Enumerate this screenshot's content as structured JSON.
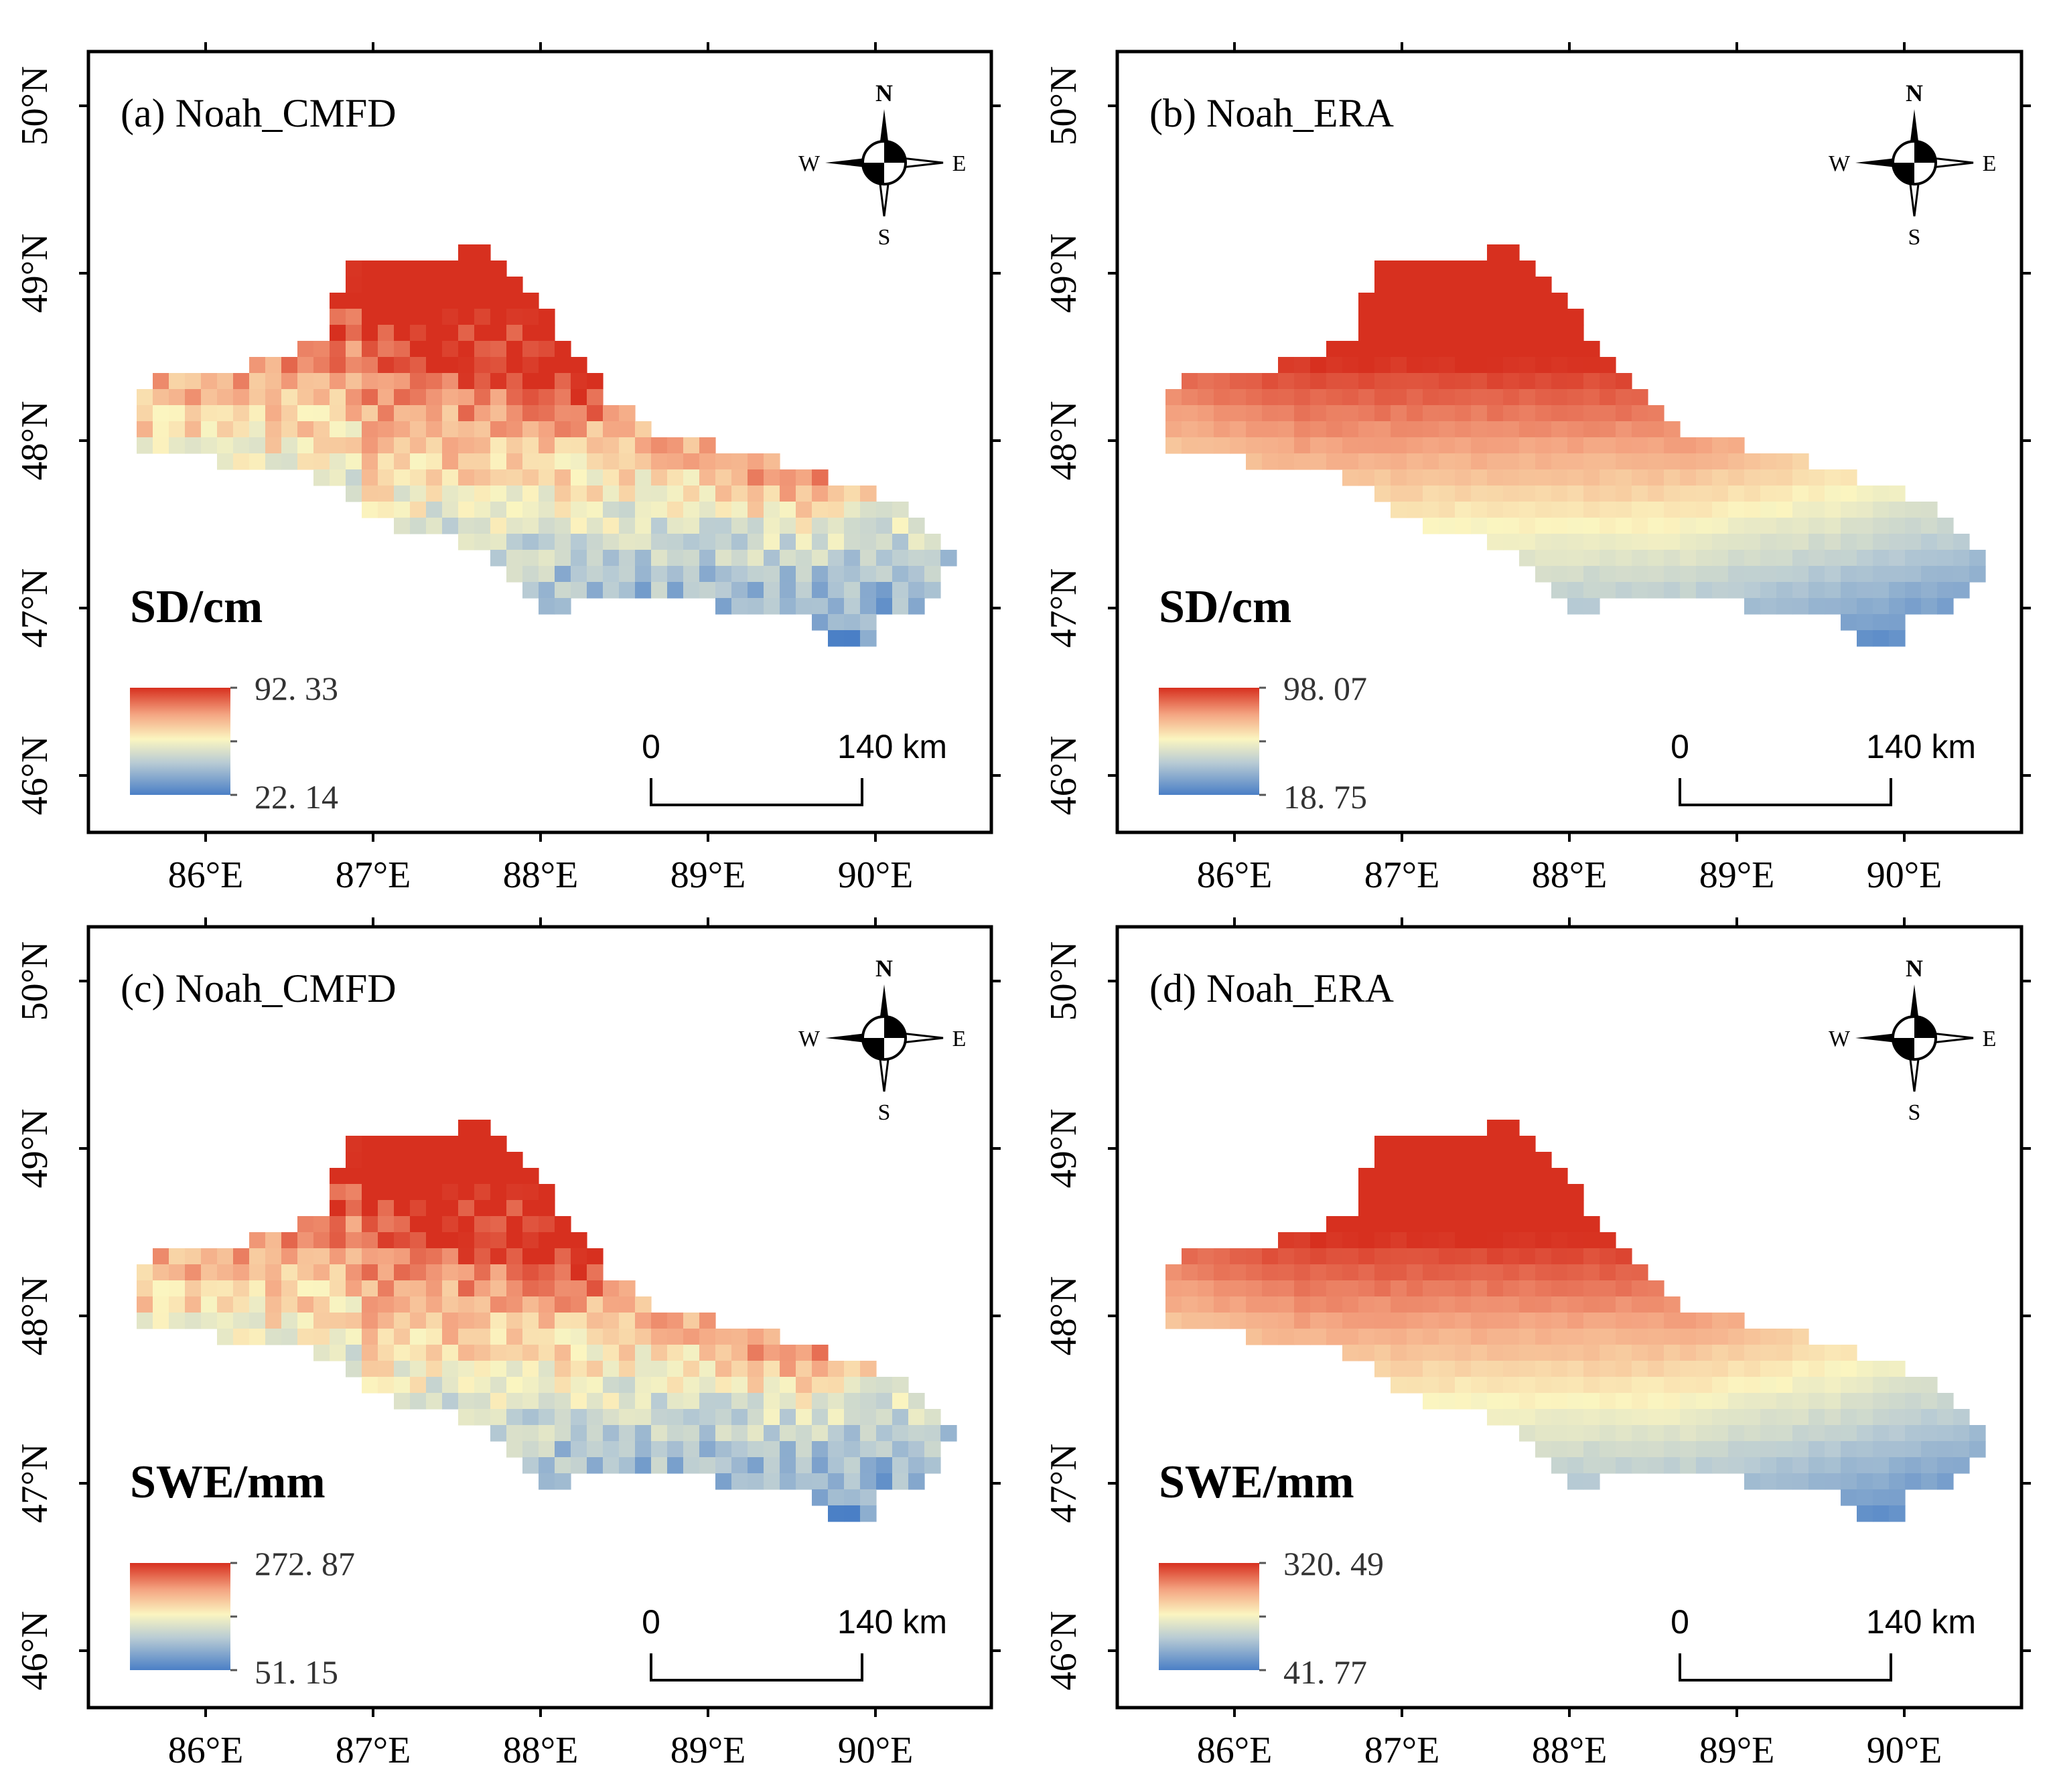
{
  "panels": [
    {
      "id": "a",
      "title": "(a) Noah_CMFD",
      "variable": "SD/cm",
      "max_label": "92. 33",
      "min_label": "22. 14",
      "pattern": "cmfd"
    },
    {
      "id": "b",
      "title": "(b) Noah_ERA",
      "variable": "SD/cm",
      "max_label": "98. 07",
      "min_label": "18. 75",
      "pattern": "era"
    },
    {
      "id": "c",
      "title": "(c) Noah_CMFD",
      "variable": "SWE/mm",
      "max_label": "272. 87",
      "min_label": "51. 15",
      "pattern": "cmfd"
    },
    {
      "id": "d",
      "title": "(d) Noah_ERA",
      "variable": "SWE/mm",
      "max_label": "320. 49",
      "min_label": "41. 77",
      "pattern": "era"
    }
  ],
  "lon_ticks": [
    "86°E",
    "87°E",
    "88°E",
    "89°E",
    "90°E"
  ],
  "lat_ticks": [
    "46°N",
    "47°N",
    "48°N",
    "49°N",
    "50°N"
  ],
  "compass": {
    "n": "N",
    "s": "S",
    "e": "E",
    "w": "W"
  },
  "scale_bar": {
    "start": "0",
    "end": "140 km"
  },
  "colors": {
    "high": "#d7301f",
    "mid_high": "#f4a582",
    "mid": "#fbf5c0",
    "mid_low": "#b8cbd4",
    "low": "#4a7fc6",
    "frame": "#000000"
  }
}
